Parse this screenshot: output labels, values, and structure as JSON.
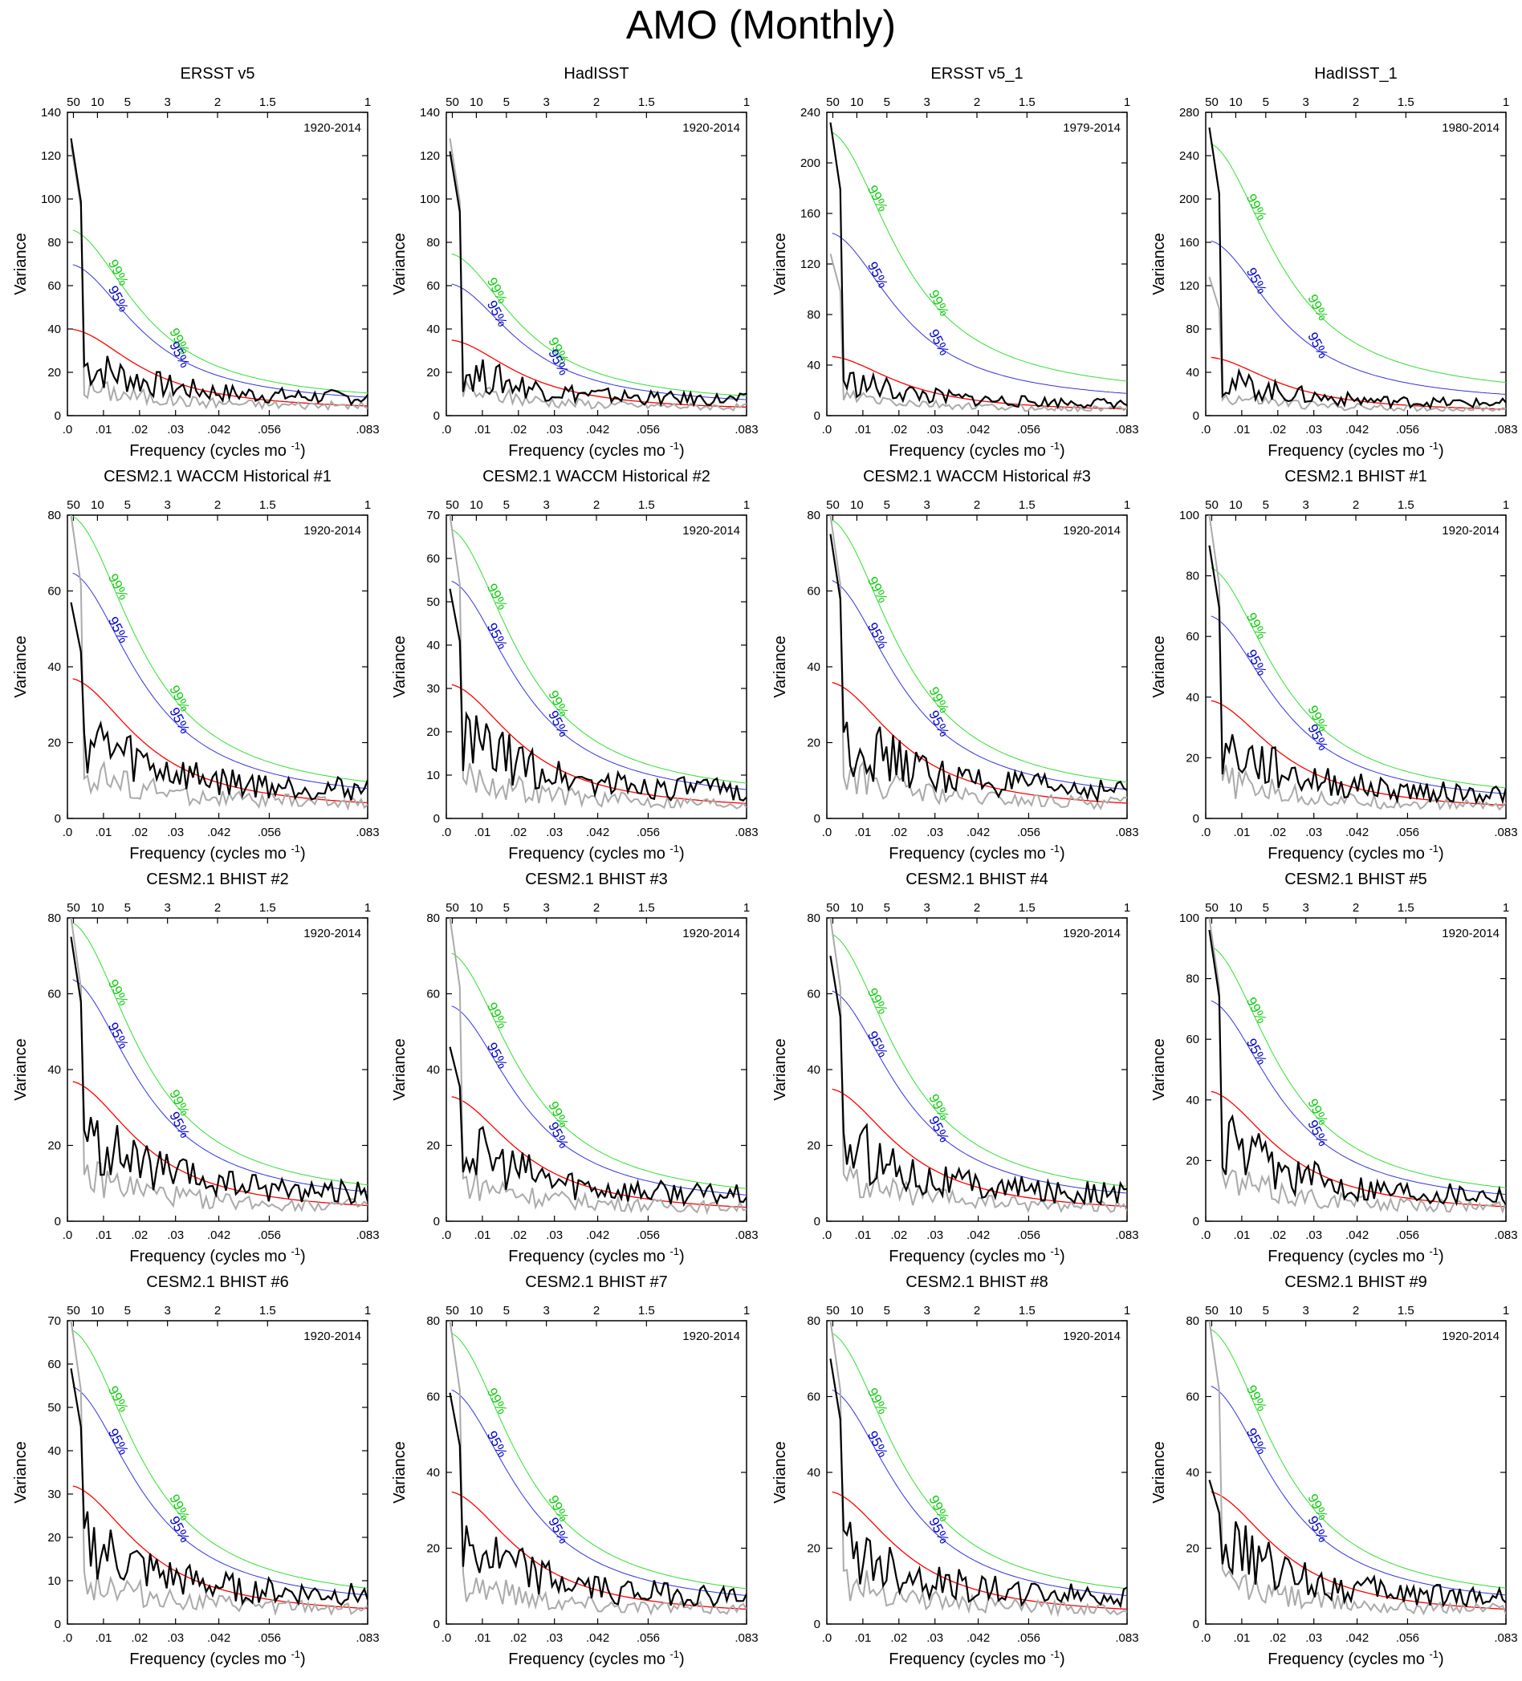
{
  "title": "AMO (Monthly)",
  "colors": {
    "observed": "#000000",
    "reference": "#aaaaaa",
    "red_noise": "#ff0000",
    "conf95": "#3333dd",
    "conf99": "#33dd33",
    "label95": "#0000cc",
    "label99": "#11cc11"
  },
  "chart_data": [
    {
      "type": "line",
      "title": "ERSST v5",
      "period": "1920-2014",
      "ylim": [
        0,
        140
      ],
      "yticks": [
        0,
        20,
        40,
        60,
        80,
        100,
        120,
        140
      ],
      "xlabel": "Frequency (cycles mo",
      "xlabel_sup": "-1",
      "ylabel": "Variance",
      "xticks": [
        ".0",
        ".01",
        ".02",
        ".03",
        ".042",
        ".056",
        ".083"
      ],
      "top_ticks": [
        "50",
        "10",
        "5",
        "3",
        "2",
        "1.5",
        "1"
      ],
      "red_noise_peak": 40,
      "conf95_peak": 70,
      "conf99_peak": 86,
      "obs_peak": 128,
      "ref_peak": 125,
      "label_99": "99%",
      "label_95": "95%"
    },
    {
      "type": "line",
      "title": "HadISST",
      "period": "1920-2014",
      "ylim": [
        0,
        140
      ],
      "yticks": [
        0,
        20,
        40,
        60,
        80,
        100,
        120,
        140
      ],
      "xlabel": "Frequency (cycles mo",
      "xlabel_sup": "-1",
      "ylabel": "Variance",
      "xticks": [
        ".0",
        ".01",
        ".02",
        ".03",
        ".042",
        ".056",
        ".083"
      ],
      "top_ticks": [
        "50",
        "10",
        "5",
        "3",
        "2",
        "1.5",
        "1"
      ],
      "red_noise_peak": 35,
      "conf95_peak": 61,
      "conf99_peak": 75,
      "obs_peak": 122,
      "ref_peak": 128,
      "label_99": "99%",
      "label_95": "95%"
    },
    {
      "type": "line",
      "title": "ERSST v5_1",
      "period": "1979-2014",
      "ylim": [
        0,
        240
      ],
      "yticks": [
        0,
        40,
        80,
        120,
        160,
        200,
        240
      ],
      "xlabel": "Frequency (cycles mo",
      "xlabel_sup": "-1",
      "ylabel": "Variance",
      "xticks": [
        ".0",
        ".01",
        ".02",
        ".03",
        ".042",
        ".056",
        ".083"
      ],
      "top_ticks": [
        "50",
        "10",
        "5",
        "3",
        "2",
        "1.5",
        "1"
      ],
      "red_noise_peak": 47,
      "conf95_peak": 145,
      "conf99_peak": 225,
      "obs_peak": 232,
      "ref_peak": 128,
      "label_99": "99%",
      "label_95": "95%"
    },
    {
      "type": "line",
      "title": "HadISST_1",
      "period": "1980-2014",
      "ylim": [
        0,
        280
      ],
      "yticks": [
        0,
        40,
        80,
        120,
        160,
        200,
        240,
        280
      ],
      "xlabel": "Frequency (cycles mo",
      "xlabel_sup": "-1",
      "ylabel": "Variance",
      "xticks": [
        ".0",
        ".01",
        ".02",
        ".03",
        ".042",
        ".056",
        ".083"
      ],
      "top_ticks": [
        "50",
        "10",
        "5",
        "3",
        "2",
        "1.5",
        "1"
      ],
      "red_noise_peak": 54,
      "conf95_peak": 162,
      "conf99_peak": 252,
      "obs_peak": 266,
      "ref_peak": 128,
      "label_99": "99%",
      "label_95": "95%"
    },
    {
      "type": "line",
      "title": "CESM2.1 WACCM Historical #1",
      "period": "1920-2014",
      "ylim": [
        0,
        80
      ],
      "yticks": [
        0,
        20,
        40,
        60,
        80
      ],
      "xlabel": "Frequency (cycles mo",
      "xlabel_sup": "-1",
      "ylabel": "Variance",
      "xticks": [
        ".0",
        ".01",
        ".02",
        ".03",
        ".042",
        ".056",
        ".083"
      ],
      "top_ticks": [
        "50",
        "10",
        "5",
        "3",
        "2",
        "1.5",
        "1"
      ],
      "red_noise_peak": 37,
      "conf95_peak": 65,
      "conf99_peak": 80,
      "obs_peak": 57,
      "ref_peak": 80,
      "label_99": "99%",
      "label_95": "95%"
    },
    {
      "type": "line",
      "title": "CESM2.1 WACCM Historical #2",
      "period": "1920-2014",
      "ylim": [
        0,
        70
      ],
      "yticks": [
        0,
        10,
        20,
        30,
        40,
        50,
        60,
        70
      ],
      "xlabel": "Frequency (cycles mo",
      "xlabel_sup": "-1",
      "ylabel": "Variance",
      "xticks": [
        ".0",
        ".01",
        ".02",
        ".03",
        ".042",
        ".056",
        ".083"
      ],
      "top_ticks": [
        "50",
        "10",
        "5",
        "3",
        "2",
        "1.5",
        "1"
      ],
      "red_noise_peak": 31,
      "conf95_peak": 55,
      "conf99_peak": 67,
      "obs_peak": 53,
      "ref_peak": 70,
      "label_99": "99%",
      "label_95": "95%"
    },
    {
      "type": "line",
      "title": "CESM2.1 WACCM Historical #3",
      "period": "1920-2014",
      "ylim": [
        0,
        80
      ],
      "yticks": [
        0,
        20,
        40,
        60,
        80
      ],
      "xlabel": "Frequency (cycles mo",
      "xlabel_sup": "-1",
      "ylabel": "Variance",
      "xticks": [
        ".0",
        ".01",
        ".02",
        ".03",
        ".042",
        ".056",
        ".083"
      ],
      "top_ticks": [
        "50",
        "10",
        "5",
        "3",
        "2",
        "1.5",
        "1"
      ],
      "red_noise_peak": 36,
      "conf95_peak": 63,
      "conf99_peak": 79,
      "obs_peak": 75,
      "ref_peak": 80,
      "label_99": "99%",
      "label_95": "95%"
    },
    {
      "type": "line",
      "title": "CESM2.1 BHIST #1",
      "period": "1920-2014",
      "ylim": [
        0,
        100
      ],
      "yticks": [
        0,
        20,
        40,
        60,
        80,
        100
      ],
      "xlabel": "Frequency (cycles mo",
      "xlabel_sup": "-1",
      "ylabel": "Variance",
      "xticks": [
        ".0",
        ".01",
        ".02",
        ".03",
        ".042",
        ".056",
        ".083"
      ],
      "top_ticks": [
        "50",
        "10",
        "5",
        "3",
        "2",
        "1.5",
        "1"
      ],
      "red_noise_peak": 39,
      "conf95_peak": 67,
      "conf99_peak": 83,
      "obs_peak": 90,
      "ref_peak": 100,
      "label_99": "99%",
      "label_95": "95%"
    },
    {
      "type": "line",
      "title": "CESM2.1 BHIST #2",
      "period": "1920-2014",
      "ylim": [
        0,
        80
      ],
      "yticks": [
        0,
        20,
        40,
        60,
        80
      ],
      "xlabel": "Frequency (cycles mo",
      "xlabel_sup": "-1",
      "ylabel": "Variance",
      "xticks": [
        ".0",
        ".01",
        ".02",
        ".03",
        ".042",
        ".056",
        ".083"
      ],
      "top_ticks": [
        "50",
        "10",
        "5",
        "3",
        "2",
        "1.5",
        "1"
      ],
      "red_noise_peak": 37,
      "conf95_peak": 64,
      "conf99_peak": 79,
      "obs_peak": 75,
      "ref_peak": 80,
      "label_99": "99%",
      "label_95": "95%"
    },
    {
      "type": "line",
      "title": "CESM2.1 BHIST #3",
      "period": "1920-2014",
      "ylim": [
        0,
        80
      ],
      "yticks": [
        0,
        20,
        40,
        60,
        80
      ],
      "xlabel": "Frequency (cycles mo",
      "xlabel_sup": "-1",
      "ylabel": "Variance",
      "xticks": [
        ".0",
        ".01",
        ".02",
        ".03",
        ".042",
        ".056",
        ".083"
      ],
      "top_ticks": [
        "50",
        "10",
        "5",
        "3",
        "2",
        "1.5",
        "1"
      ],
      "red_noise_peak": 33,
      "conf95_peak": 57,
      "conf99_peak": 71,
      "obs_peak": 46,
      "ref_peak": 80,
      "label_99": "99%",
      "label_95": "95%"
    },
    {
      "type": "line",
      "title": "CESM2.1 BHIST #4",
      "period": "1920-2014",
      "ylim": [
        0,
        80
      ],
      "yticks": [
        0,
        20,
        40,
        60,
        80
      ],
      "xlabel": "Frequency (cycles mo",
      "xlabel_sup": "-1",
      "ylabel": "Variance",
      "xticks": [
        ".0",
        ".01",
        ".02",
        ".03",
        ".042",
        ".056",
        ".083"
      ],
      "top_ticks": [
        "50",
        "10",
        "5",
        "3",
        "2",
        "1.5",
        "1"
      ],
      "red_noise_peak": 35,
      "conf95_peak": 61,
      "conf99_peak": 76,
      "obs_peak": 70,
      "ref_peak": 80,
      "label_99": "99%",
      "label_95": "95%"
    },
    {
      "type": "line",
      "title": "CESM2.1 BHIST #5",
      "period": "1920-2014",
      "ylim": [
        0,
        100
      ],
      "yticks": [
        0,
        20,
        40,
        60,
        80,
        100
      ],
      "xlabel": "Frequency (cycles mo",
      "xlabel_sup": "-1",
      "ylabel": "Variance",
      "xticks": [
        ".0",
        ".01",
        ".02",
        ".03",
        ".042",
        ".056",
        ".083"
      ],
      "top_ticks": [
        "50",
        "10",
        "5",
        "3",
        "2",
        "1.5",
        "1"
      ],
      "red_noise_peak": 43,
      "conf95_peak": 73,
      "conf99_peak": 91,
      "obs_peak": 96,
      "ref_peak": 100,
      "label_99": "99%",
      "label_95": "95%"
    },
    {
      "type": "line",
      "title": "CESM2.1 BHIST #6",
      "period": "1920-2014",
      "ylim": [
        0,
        70
      ],
      "yticks": [
        0,
        10,
        20,
        30,
        40,
        50,
        60,
        70
      ],
      "xlabel": "Frequency (cycles mo",
      "xlabel_sup": "-1",
      "ylabel": "Variance",
      "xticks": [
        ".0",
        ".01",
        ".02",
        ".03",
        ".042",
        ".056",
        ".083"
      ],
      "top_ticks": [
        "50",
        "10",
        "5",
        "3",
        "2",
        "1.5",
        "1"
      ],
      "red_noise_peak": 32,
      "conf95_peak": 55,
      "conf99_peak": 68,
      "obs_peak": 59,
      "ref_peak": 70,
      "label_99": "99%",
      "label_95": "95%"
    },
    {
      "type": "line",
      "title": "CESM2.1 BHIST #7",
      "period": "1920-2014",
      "ylim": [
        0,
        80
      ],
      "yticks": [
        0,
        20,
        40,
        60,
        80
      ],
      "xlabel": "Frequency (cycles mo",
      "xlabel_sup": "-1",
      "ylabel": "Variance",
      "xticks": [
        ".0",
        ".01",
        ".02",
        ".03",
        ".042",
        ".056",
        ".083"
      ],
      "top_ticks": [
        "50",
        "10",
        "5",
        "3",
        "2",
        "1.5",
        "1"
      ],
      "red_noise_peak": 35,
      "conf95_peak": 62,
      "conf99_peak": 77,
      "obs_peak": 61,
      "ref_peak": 80,
      "label_99": "99%",
      "label_95": "95%"
    },
    {
      "type": "line",
      "title": "CESM2.1 BHIST #8",
      "period": "1920-2014",
      "ylim": [
        0,
        80
      ],
      "yticks": [
        0,
        20,
        40,
        60,
        80
      ],
      "xlabel": "Frequency (cycles mo",
      "xlabel_sup": "-1",
      "ylabel": "Variance",
      "xticks": [
        ".0",
        ".01",
        ".02",
        ".03",
        ".042",
        ".056",
        ".083"
      ],
      "top_ticks": [
        "50",
        "10",
        "5",
        "3",
        "2",
        "1.5",
        "1"
      ],
      "red_noise_peak": 35,
      "conf95_peak": 62,
      "conf99_peak": 77,
      "obs_peak": 70,
      "ref_peak": 80,
      "label_99": "99%",
      "label_95": "95%"
    },
    {
      "type": "line",
      "title": "CESM2.1 BHIST #9",
      "period": "1920-2014",
      "ylim": [
        0,
        80
      ],
      "yticks": [
        0,
        20,
        40,
        60,
        80
      ],
      "xlabel": "Frequency (cycles mo",
      "xlabel_sup": "-1",
      "ylabel": "Variance",
      "xticks": [
        ".0",
        ".01",
        ".02",
        ".03",
        ".042",
        ".056",
        ".083"
      ],
      "top_ticks": [
        "50",
        "10",
        "5",
        "3",
        "2",
        "1.5",
        "1"
      ],
      "red_noise_peak": 35,
      "conf95_peak": 63,
      "conf99_peak": 78,
      "obs_peak": 38,
      "ref_peak": 80,
      "label_99": "99%",
      "label_95": "95%"
    }
  ]
}
